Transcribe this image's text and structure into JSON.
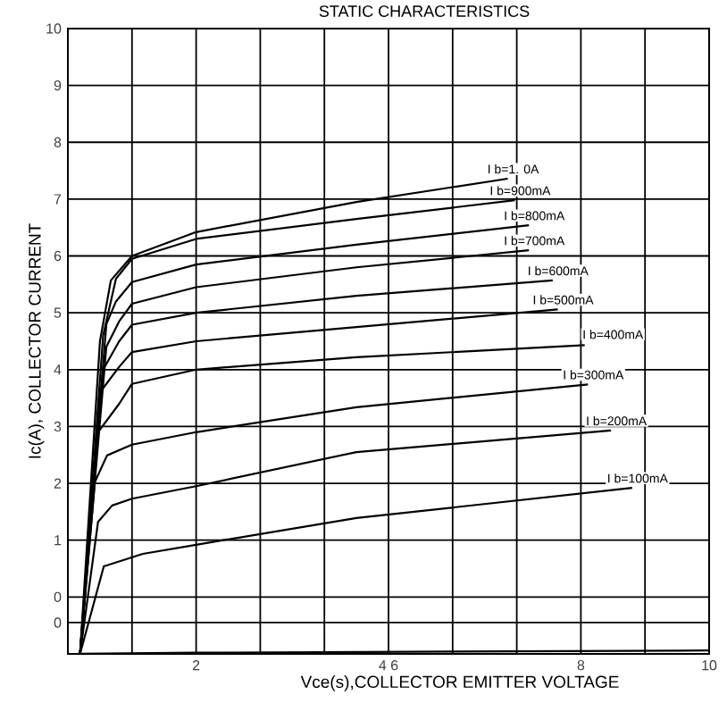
{
  "chart_data": {
    "type": "line",
    "title": "STATIC CHARACTERISTICS",
    "xlabel": "Vce(s),COLLECTOR EMITTER VOLTAGE",
    "ylabel": "Ic(A), COLLECTOR CURRENT",
    "xlim": [
      0,
      10
    ],
    "ylim": [
      -1,
      10
    ],
    "xticks": [
      {
        "value": 1,
        "label": null
      },
      2,
      {
        "value": 3,
        "label": null
      },
      {
        "value": 4,
        "label": null
      },
      {
        "value": 5,
        "label": "4 6"
      },
      {
        "value": 6,
        "label": null
      },
      {
        "value": 7,
        "label": null
      },
      8,
      {
        "value": 9,
        "label": null
      },
      10
    ],
    "yticks": [
      {
        "value": -0.45,
        "label": "0"
      },
      0,
      1,
      2,
      3,
      4,
      5,
      6,
      7,
      8,
      9,
      10
    ],
    "grid": true,
    "legend": false,
    "marker": "none",
    "line_style": "solid",
    "series": [
      {
        "name": "I b=1. 0A",
        "color": "#000000",
        "x": [
          0.19,
          0.5,
          0.67,
          1,
          2,
          4.5,
          6.86
        ],
        "values": [
          -1,
          4.5,
          5.57,
          6.0,
          6.42,
          6.95,
          7.36
        ]
      },
      {
        "name": "I b=900mA",
        "color": "#000000",
        "x": [
          0.19,
          0.55,
          0.75,
          1,
          2,
          4.5,
          6.97
        ],
        "values": [
          -1,
          4.6,
          5.6,
          5.95,
          6.3,
          6.65,
          6.98
        ]
      },
      {
        "name": "I b=800mA",
        "color": "#000000",
        "x": [
          0.19,
          0.6,
          0.75,
          1,
          2,
          4.5,
          7.19
        ],
        "values": [
          -1,
          4.8,
          5.2,
          5.54,
          5.85,
          6.2,
          6.54
        ]
      },
      {
        "name": "I b=700mA",
        "color": "#000000",
        "x": [
          0.19,
          0.6,
          0.8,
          1,
          2,
          4.5,
          7.19
        ],
        "values": [
          -1,
          4.4,
          4.85,
          5.16,
          5.45,
          5.8,
          6.1
        ]
      },
      {
        "name": "I b=600mA",
        "color": "#000000",
        "x": [
          0.19,
          0.55,
          0.8,
          1,
          2,
          4.5,
          7.56
        ],
        "values": [
          -1,
          4.0,
          4.5,
          4.79,
          5.0,
          5.3,
          5.57
        ]
      },
      {
        "name": "I b=500mA",
        "color": "#000000",
        "x": [
          0.19,
          0.5,
          0.8,
          1,
          2,
          4.5,
          7.64
        ],
        "values": [
          -1,
          3.6,
          4.05,
          4.31,
          4.5,
          4.75,
          5.06
        ]
      },
      {
        "name": "I b=400mA",
        "color": "#000000",
        "x": [
          0.19,
          0.47,
          0.8,
          1,
          2,
          4.5,
          8.06
        ],
        "values": [
          -1,
          2.9,
          3.4,
          3.75,
          4.0,
          4.22,
          4.43
        ]
      },
      {
        "name": "I b=300mA",
        "color": "#000000",
        "x": [
          0.19,
          0.42,
          0.61,
          1,
          2,
          4.5,
          8.11
        ],
        "values": [
          -1,
          2.02,
          2.49,
          2.68,
          2.9,
          3.34,
          3.74
        ]
      },
      {
        "name": "I b=200mA",
        "color": "#000000",
        "x": [
          0.19,
          0.47,
          0.69,
          1,
          2,
          4.5,
          8.47
        ],
        "values": [
          -1,
          1.32,
          1.61,
          1.73,
          1.95,
          2.55,
          2.93
        ]
      },
      {
        "name": "I b=100mA",
        "color": "#000000",
        "x": [
          0.19,
          0.56,
          1.17,
          2,
          4.5,
          8.8
        ],
        "values": [
          -1,
          0.54,
          0.76,
          0.92,
          1.39,
          1.92
        ]
      },
      {
        "color": "#000000",
        "x": [
          0.19,
          2,
          6,
          10
        ],
        "values": [
          -1,
          -0.98,
          -0.96,
          -0.94
        ]
      }
    ]
  }
}
